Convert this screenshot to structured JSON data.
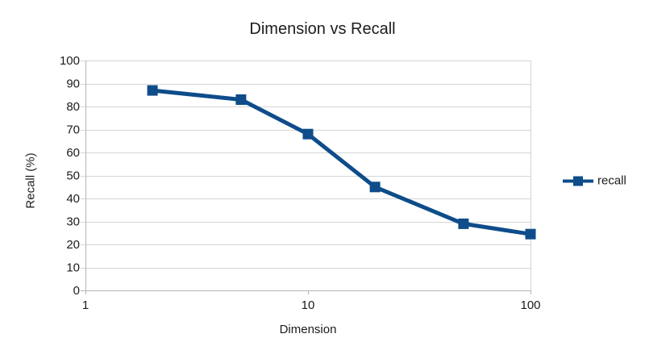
{
  "chart_data": {
    "type": "line",
    "title": "Dimension vs Recall",
    "xlabel": "Dimension",
    "ylabel": "Recall (%)",
    "x_scale": "log",
    "xlim": [
      1,
      100
    ],
    "ylim": [
      0,
      100
    ],
    "x_ticks": [
      1,
      10,
      100
    ],
    "y_ticks": [
      0,
      10,
      20,
      30,
      40,
      50,
      60,
      70,
      80,
      90,
      100
    ],
    "x": [
      2,
      5,
      10,
      20,
      50,
      100
    ],
    "series": [
      {
        "name": "recall",
        "values": [
          87,
          83,
          68,
          45,
          29,
          24.5
        ]
      }
    ],
    "grid": "horizontal",
    "legend_position": "right",
    "marker": "square",
    "colors": {
      "series": "#0e4c8a",
      "grid": "#d5d5d5",
      "axis": "#b4b4b4",
      "text": "#1c1c1c"
    }
  }
}
